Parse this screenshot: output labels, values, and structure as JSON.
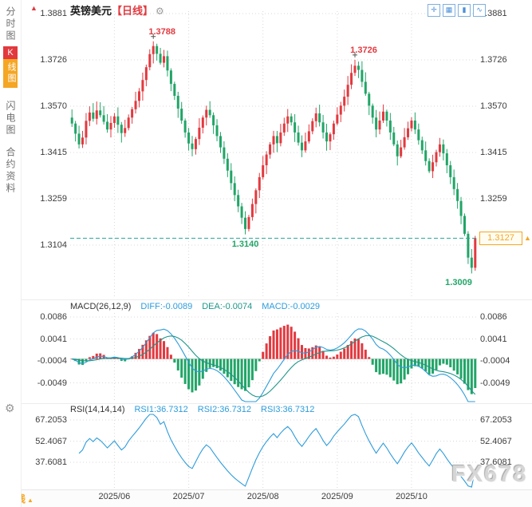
{
  "colors": {
    "up": "#e2393f",
    "down": "#21a567",
    "price_line": "#26a69a",
    "accent": "#f5a623",
    "diff_line": "#2d9cdb",
    "dea_line": "#1d9688",
    "rsi_line": "#2d9cdb",
    "grid": "#d9d9d9",
    "axis_text": "#3c3c3c"
  },
  "icons": {
    "gear": "⚙",
    "up_arrow": "▲"
  },
  "sidebar": {
    "items": [
      {
        "label": "分时图"
      },
      {
        "label": "K线图",
        "active": true,
        "first": "K",
        "rest": "线图"
      },
      {
        "label": "闪电图"
      },
      {
        "label": "合约资料"
      }
    ]
  },
  "header": {
    "symbol": "英镑美元",
    "period_tag": "【日线】",
    "toolbar": [
      {
        "name": "pan",
        "glyph": "✛"
      },
      {
        "name": "grid",
        "glyph": "▦"
      },
      {
        "name": "kline",
        "glyph": "▮"
      },
      {
        "name": "line-chart",
        "glyph": "∿"
      }
    ]
  },
  "price_box": {
    "label": "1.3127"
  },
  "footer": {
    "period_label": "日线"
  },
  "watermark": "FX678",
  "chart_data": [
    {
      "type": "candlestick",
      "title": "英镑美元【日线】",
      "y_ticks": [
        "1.3881",
        "1.3726",
        "1.3570",
        "1.3415",
        "1.3259",
        "1.3104"
      ],
      "y_tick_values": [
        1.3881,
        1.3726,
        1.357,
        1.3415,
        1.3259,
        1.3104
      ],
      "x_ticks": [
        {
          "day": 12,
          "label": "2025/06"
        },
        {
          "day": 33,
          "label": "2025/07"
        },
        {
          "day": 54,
          "label": "2025/08"
        },
        {
          "day": 75,
          "label": "2025/09"
        },
        {
          "day": 96,
          "label": "2025/10"
        }
      ],
      "current_price": 1.3127,
      "closes": [
        1.3512,
        1.3478,
        1.3442,
        1.3465,
        1.3521,
        1.3549,
        1.3528,
        1.3556,
        1.354,
        1.3518,
        1.3492,
        1.3514,
        1.3536,
        1.3508,
        1.348,
        1.3497,
        1.3532,
        1.356,
        1.3588,
        1.362,
        1.3658,
        1.3701,
        1.3745,
        1.3772,
        1.3746,
        1.3716,
        1.3738,
        1.369,
        1.3645,
        1.3605,
        1.3562,
        1.3522,
        1.3482,
        1.3445,
        1.3426,
        1.346,
        1.3498,
        1.3532,
        1.3558,
        1.354,
        1.3506,
        1.347,
        1.3432,
        1.3394,
        1.3354,
        1.3312,
        1.3272,
        1.3234,
        1.3196,
        1.3158,
        1.3198,
        1.3242,
        1.3288,
        1.3332,
        1.3372,
        1.3408,
        1.3442,
        1.347,
        1.3446,
        1.3482,
        1.3512,
        1.3536,
        1.3516,
        1.3482,
        1.3448,
        1.3422,
        1.3452,
        1.3486,
        1.352,
        1.3546,
        1.3516,
        1.3482,
        1.3452,
        1.3476,
        1.3512,
        1.3542,
        1.3572,
        1.3602,
        1.3642,
        1.3682,
        1.3706,
        1.3692,
        1.3652,
        1.3612,
        1.3572,
        1.3532,
        1.3492,
        1.3522,
        1.3552,
        1.3522,
        1.3482,
        1.3442,
        1.3402,
        1.3432,
        1.3466,
        1.3496,
        1.3522,
        1.3492,
        1.3456,
        1.3422,
        1.3386,
        1.3352,
        1.3382,
        1.3416,
        1.3442,
        1.3412,
        1.3372,
        1.3332,
        1.3292,
        1.3252,
        1.3202,
        1.3142,
        1.3062,
        1.3028,
        1.3127
      ],
      "extremes": {
        "23": {
          "high": 1.3788
        },
        "24": {
          "high": 1.378
        },
        "49": {
          "low": 1.314
        },
        "50": {
          "low": 1.315
        },
        "80": {
          "high": 1.3726
        },
        "81": {
          "high": 1.372
        },
        "113": {
          "low": 1.3009
        },
        "114": {
          "high": 1.3135,
          "low": 1.3018
        }
      },
      "annotations": [
        {
          "day": 23,
          "price": 1.3788,
          "label": "1.3788",
          "kind": "high"
        },
        {
          "day": 80,
          "price": 1.3726,
          "label": "1.3726",
          "kind": "high"
        },
        {
          "day": 49,
          "price": 1.314,
          "label": "1.3140",
          "kind": "low"
        },
        {
          "day": 113,
          "price": 1.3009,
          "label": "1.3009",
          "kind": "low"
        }
      ]
    },
    {
      "type": "macd",
      "header": {
        "name": "MACD(26,12,9)",
        "diff": "DIFF:-0.0089",
        "dea": "DEA:-0.0074",
        "macd": "MACD:-0.0029"
      },
      "params": [
        26,
        12,
        9
      ],
      "y_ticks": [
        "0.0086",
        "0.0041",
        "-0.0004",
        "-0.0049"
      ],
      "y_tick_values": [
        0.0086,
        0.0041,
        -0.0004,
        -0.0049
      ]
    },
    {
      "type": "rsi",
      "header": {
        "name": "RSI(14,14,14)",
        "rsi1": "RSI1:36.7312",
        "rsi2": "RSI2:36.7312",
        "rsi3": "RSI3:36.7312"
      },
      "params": [
        14,
        14,
        14
      ],
      "y_ticks": [
        "67.2053",
        "52.4067",
        "37.6081"
      ],
      "y_tick_values": [
        67.2053,
        52.4067,
        37.6081
      ]
    }
  ]
}
